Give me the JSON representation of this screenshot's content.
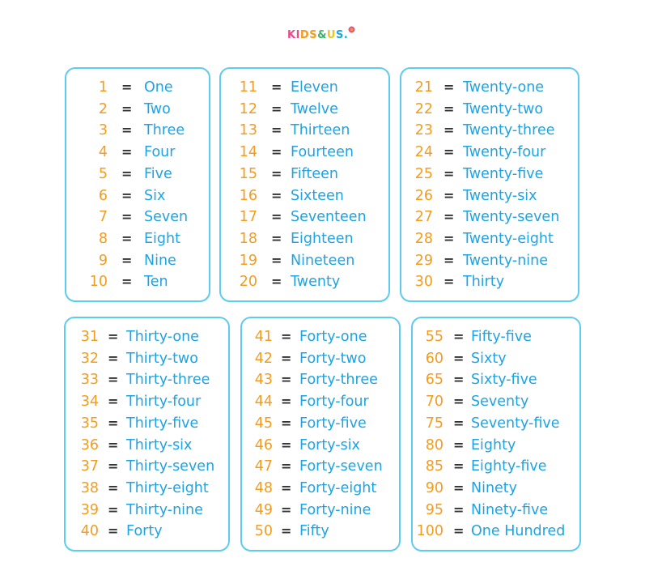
{
  "logo": {
    "letters": [
      "KI",
      "DS",
      "&",
      "U",
      "S."
    ]
  },
  "equals": "=",
  "cards": [
    {
      "rows": [
        [
          "1",
          "One"
        ],
        [
          "2",
          "Two"
        ],
        [
          "3",
          "Three"
        ],
        [
          "4",
          "Four"
        ],
        [
          "5",
          "Five"
        ],
        [
          "6",
          "Six"
        ],
        [
          "7",
          "Seven"
        ],
        [
          "8",
          "Eight"
        ],
        [
          "9",
          "Nine"
        ],
        [
          "10",
          "Ten"
        ]
      ]
    },
    {
      "rows": [
        [
          "11",
          "Eleven"
        ],
        [
          "12",
          "Twelve"
        ],
        [
          "13",
          "Thirteen"
        ],
        [
          "14",
          "Fourteen"
        ],
        [
          "15",
          "Fifteen"
        ],
        [
          "16",
          "Sixteen"
        ],
        [
          "17",
          "Seventeen"
        ],
        [
          "18",
          "Eighteen"
        ],
        [
          "19",
          "Nineteen"
        ],
        [
          "20",
          "Twenty"
        ]
      ]
    },
    {
      "rows": [
        [
          "21",
          "Twenty-one"
        ],
        [
          "22",
          "Twenty-two"
        ],
        [
          "23",
          "Twenty-three"
        ],
        [
          "24",
          "Twenty-four"
        ],
        [
          "25",
          "Twenty-five"
        ],
        [
          "26",
          "Twenty-six"
        ],
        [
          "27",
          "Twenty-seven"
        ],
        [
          "28",
          "Twenty-eight"
        ],
        [
          "29",
          "Twenty-nine"
        ],
        [
          "30",
          "Thirty"
        ]
      ]
    },
    {
      "rows": [
        [
          "31",
          "Thirty-one"
        ],
        [
          "32",
          "Thirty-two"
        ],
        [
          "33",
          "Thirty-three"
        ],
        [
          "34",
          "Thirty-four"
        ],
        [
          "35",
          "Thirty-five"
        ],
        [
          "36",
          "Thirty-six"
        ],
        [
          "37",
          "Thirty-seven"
        ],
        [
          "38",
          "Thirty-eight"
        ],
        [
          "39",
          "Thirty-nine"
        ],
        [
          "40",
          "Forty"
        ]
      ]
    },
    {
      "rows": [
        [
          "41",
          "Forty-one"
        ],
        [
          "42",
          "Forty-two"
        ],
        [
          "43",
          "Forty-three"
        ],
        [
          "44",
          "Forty-four"
        ],
        [
          "45",
          "Forty-five"
        ],
        [
          "46",
          "Forty-six"
        ],
        [
          "47",
          "Forty-seven"
        ],
        [
          "48",
          "Forty-eight"
        ],
        [
          "49",
          "Forty-nine"
        ],
        [
          "50",
          "Fifty"
        ]
      ]
    },
    {
      "rows": [
        [
          "55",
          "Fifty-five"
        ],
        [
          "60",
          "Sixty"
        ],
        [
          "65",
          "Sixty-five"
        ],
        [
          "70",
          "Seventy"
        ],
        [
          "75",
          "Seventy-five"
        ],
        [
          "80",
          "Eighty"
        ],
        [
          "85",
          "Eighty-five"
        ],
        [
          "90",
          "Ninety"
        ],
        [
          "95",
          "Ninety-five"
        ],
        [
          "100",
          "One Hundred"
        ]
      ]
    }
  ]
}
